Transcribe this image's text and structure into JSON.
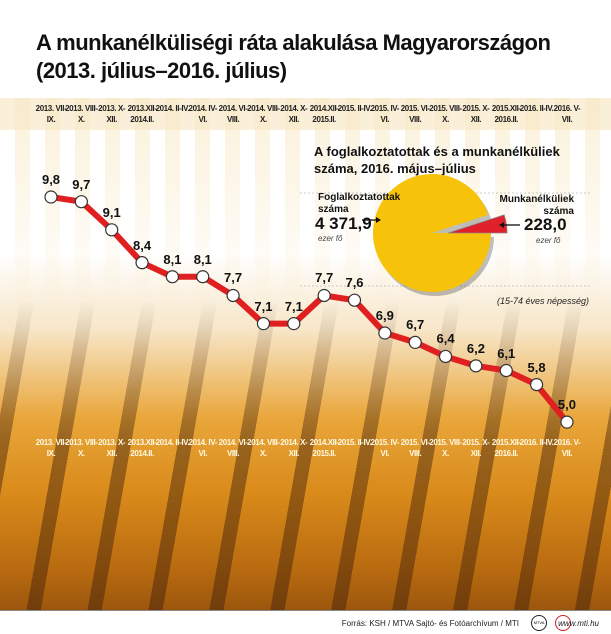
{
  "title_line1": "A munkanélküliségi ráta alakulása Magyarországon",
  "title_line2": "(2013. július–2016. július)",
  "chart_data": [
    {
      "type": "line",
      "categories": [
        "2013. VII-IX.",
        "2013. VIII-X.",
        "2013. X-XII.",
        "2013.XII- 2014.II.",
        "2014. II-IV.",
        "2014. IV-VI.",
        "2014. VI-VIII.",
        "2014. VIII-X.",
        "2014. X-XII.",
        "2014.XII- 2015.II.",
        "2015. II-IV.",
        "2015. IV-VI.",
        "2015. VI-VIII.",
        "2015. VIII-X.",
        "2015. X-XII.",
        "2015.XII- 2016.II.",
        "2016. II-IV.",
        "2016. V-VII."
      ],
      "values": [
        9.8,
        9.7,
        9.1,
        8.4,
        8.1,
        8.1,
        7.7,
        7.1,
        7.1,
        7.7,
        7.6,
        6.9,
        6.7,
        6.4,
        6.2,
        6.1,
        5.8,
        5.0
      ],
      "value_labels": [
        "9,8",
        "9,7",
        "9,1",
        "8,4",
        "8,1",
        "8,1",
        "7,7",
        "7,1",
        "7,1",
        "7,7",
        "7,6",
        "6,9",
        "6,7",
        "6,4",
        "6,2",
        "6,1",
        "5,8",
        "5,0"
      ],
      "line_color": "#e02020"
    },
    {
      "type": "pie",
      "title": "A foglalkoztatottak és a munkanélküliek száma, 2016. május–július",
      "slices": [
        {
          "name": "Foglalkoztatottak száma",
          "value": 4371.9,
          "label": "4 371,9",
          "unit": "ezer fő",
          "color": "#f7c20a"
        },
        {
          "name": "Munkanélküliek száma",
          "value": 228.0,
          "label": "228,0",
          "unit": "ezer fő",
          "color": "#e0202a"
        }
      ],
      "note": "(15-74 éves népesség)"
    }
  ],
  "footer": {
    "source": "Forrás: KSH / MTVA Sajtó- és Fotóarchívum / MTI",
    "logo1": "MTVA",
    "url": "www.mti.hu"
  }
}
